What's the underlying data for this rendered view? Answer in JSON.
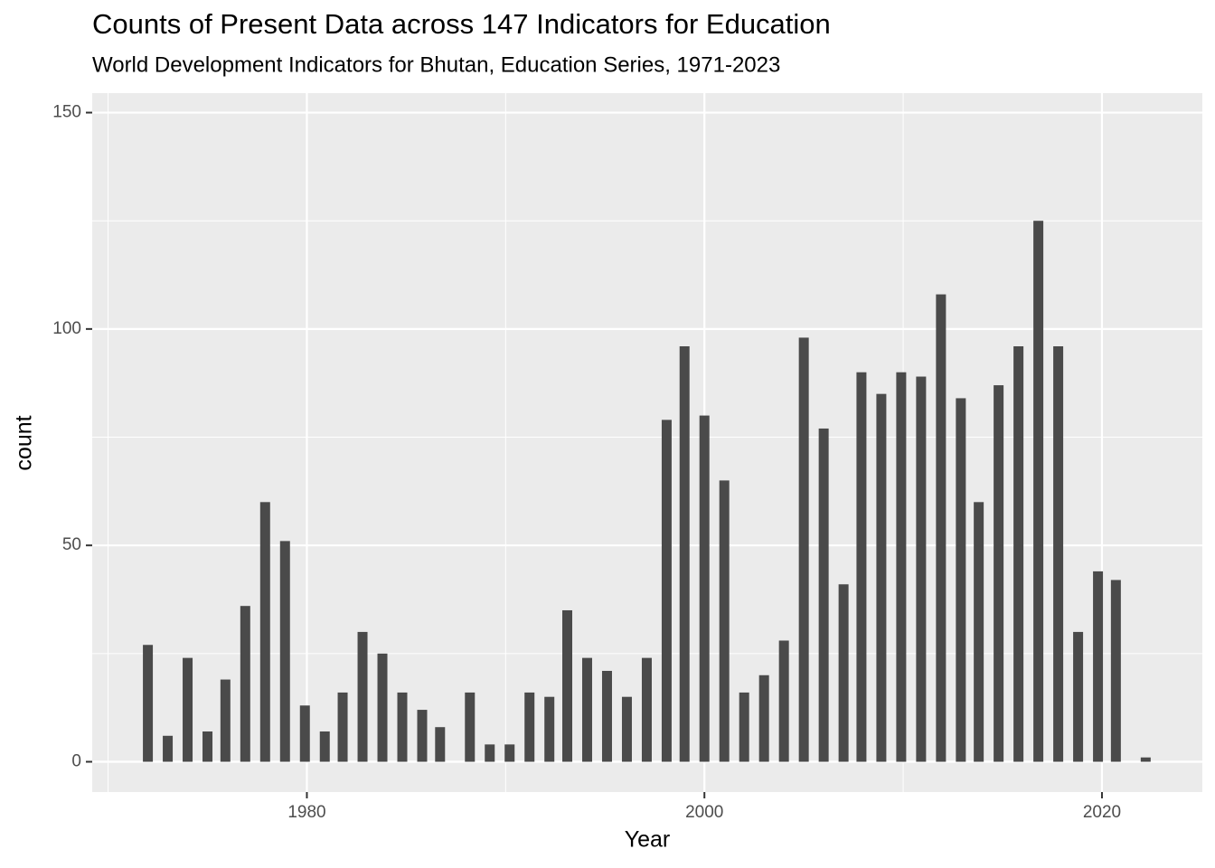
{
  "chart_data": {
    "type": "bar",
    "title": "Counts of Present Data across 147 Indicators for Education",
    "subtitle": "World Development Indicators for Bhutan, Education Series, 1971-2023",
    "x_label": "Year",
    "y_label": "count",
    "x": [
      1972.0,
      1973.0,
      1974.0,
      1975.0,
      1975.9,
      1976.9,
      1977.9,
      1978.9,
      1979.9,
      1980.9,
      1981.8,
      1982.8,
      1983.8,
      1984.8,
      1985.8,
      1986.7,
      1988.2,
      1989.2,
      1990.2,
      1991.2,
      1992.2,
      1993.1,
      1994.1,
      1995.1,
      1996.1,
      1997.1,
      1998.1,
      1999.0,
      2000.0,
      2001.0,
      2002.0,
      2003.0,
      2004.0,
      2005.0,
      2006.0,
      2007.0,
      2007.9,
      2008.9,
      2009.9,
      2010.9,
      2011.9,
      2012.9,
      2013.8,
      2014.8,
      2015.8,
      2016.8,
      2017.8,
      2018.8,
      2019.8,
      2020.7,
      2022.2
    ],
    "values": [
      27,
      6,
      24,
      7,
      19,
      36,
      60,
      51,
      13,
      7,
      16,
      30,
      25,
      16,
      12,
      8,
      16,
      4,
      4,
      16,
      15,
      35,
      24,
      21,
      15,
      24,
      79,
      96,
      80,
      65,
      16,
      20,
      28,
      98,
      77,
      41,
      90,
      85,
      90,
      89,
      108,
      84,
      60,
      87,
      96,
      125,
      96,
      30,
      44,
      42,
      1
    ],
    "color": "#4a4a4a",
    "xlim": [
      1969.2,
      2025.05
    ],
    "xticks": [
      1980,
      2000,
      2020
    ],
    "ylim": [
      -7,
      154.5
    ],
    "yticks": [
      0,
      50,
      100,
      150
    ],
    "grid": true
  }
}
